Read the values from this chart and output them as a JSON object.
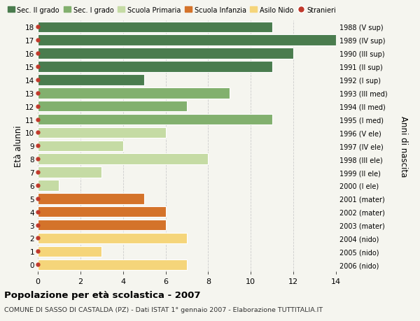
{
  "ages": [
    18,
    17,
    16,
    15,
    14,
    13,
    12,
    11,
    10,
    9,
    8,
    7,
    6,
    5,
    4,
    3,
    2,
    1,
    0
  ],
  "values": [
    11,
    14,
    12,
    11,
    5,
    9,
    7,
    11,
    6,
    4,
    8,
    3,
    1,
    5,
    6,
    6,
    7,
    3,
    7
  ],
  "categories": [
    "Sec. II grado",
    "Sec. II grado",
    "Sec. II grado",
    "Sec. II grado",
    "Sec. II grado",
    "Sec. I grado",
    "Sec. I grado",
    "Sec. I grado",
    "Scuola Primaria",
    "Scuola Primaria",
    "Scuola Primaria",
    "Scuola Primaria",
    "Scuola Primaria",
    "Scuola Infanzia",
    "Scuola Infanzia",
    "Scuola Infanzia",
    "Asilo Nido",
    "Asilo Nido",
    "Asilo Nido"
  ],
  "right_labels": [
    "1988 (V sup)",
    "1989 (IV sup)",
    "1990 (III sup)",
    "1991 (II sup)",
    "1992 (I sup)",
    "1993 (III med)",
    "1994 (II med)",
    "1995 (I med)",
    "1996 (V ele)",
    "1997 (IV ele)",
    "1998 (III ele)",
    "1999 (II ele)",
    "2000 (I ele)",
    "2001 (mater)",
    "2002 (mater)",
    "2003 (mater)",
    "2004 (nido)",
    "2005 (nido)",
    "2006 (nido)"
  ],
  "colors": {
    "Sec. II grado": "#4a7c4e",
    "Sec. I grado": "#82b06e",
    "Scuola Primaria": "#c5dba4",
    "Scuola Infanzia": "#d4732a",
    "Asilo Nido": "#f5d57a"
  },
  "legend_order": [
    "Sec. II grado",
    "Sec. I grado",
    "Scuola Primaria",
    "Scuola Infanzia",
    "Asilo Nido",
    "Stranieri"
  ],
  "legend_colors": {
    "Sec. II grado": "#4a7c4e",
    "Sec. I grado": "#82b06e",
    "Scuola Primaria": "#c5dba4",
    "Scuola Infanzia": "#d4732a",
    "Asilo Nido": "#f5d57a",
    "Stranieri": "#c0392b"
  },
  "dot_color": "#c0392b",
  "background_color": "#f5f5ef",
  "grid_color": "#cccccc",
  "title": "Popolazione per età scolastica - 2007",
  "subtitle": "COMUNE DI SASSO DI CASTALDA (PZ) - Dati ISTAT 1° gennaio 2007 - Elaborazione TUTTITALIA.IT",
  "ylabel_left": "Età alunni",
  "ylabel_right": "Anni di nascita",
  "xlim": [
    0,
    14
  ],
  "ylim": [
    -0.5,
    18.5
  ],
  "xticks": [
    0,
    2,
    4,
    6,
    8,
    10,
    12,
    14
  ]
}
